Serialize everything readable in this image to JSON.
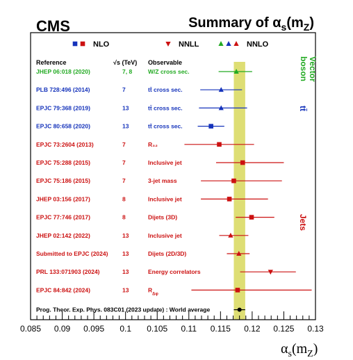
{
  "experiment": "CMS",
  "title": "Summary of α_s(m_Z)",
  "colors": {
    "vector_boson": "#22aa22",
    "ttbar": "#1533bb",
    "jets": "#cc1111",
    "world": "#000000",
    "band": "#dede74"
  },
  "legend": [
    {
      "label": "NLO",
      "markers": [
        "square"
      ],
      "colors": [
        "#1533bb",
        "#cc1111"
      ]
    },
    {
      "label": "NNLL",
      "markers": [
        "triangle-down"
      ],
      "colors": [
        "#cc1111"
      ]
    },
    {
      "label": "NNLO",
      "markers": [
        "triangle-up"
      ],
      "colors": [
        "#22aa22",
        "#1533bb",
        "#cc1111"
      ]
    }
  ],
  "headers": {
    "reference": "Reference",
    "energy": "√s (TeV)",
    "observable": "Observable"
  },
  "groups": [
    {
      "label": "Vector boson",
      "color": "#22aa22"
    },
    {
      "label": "tt̄",
      "color": "#1533bb"
    },
    {
      "label": "Jets",
      "color": "#cc1111"
    }
  ],
  "chart_data": {
    "type": "scatter",
    "xlabel": "α_s(m_Z)",
    "xlim": [
      0.085,
      0.13
    ],
    "xticks": [
      "0.085",
      "0.09",
      "0.095",
      "0.1",
      "0.105",
      "0.11",
      "0.115",
      "0.12",
      "0.125",
      "0.13"
    ],
    "band": {
      "low": 0.1171,
      "high": 0.1189
    },
    "points": [
      {
        "reference": "JHEP 06:018 (2020)",
        "sqrt_s": "7, 8",
        "observable": "W/Z cross sec.",
        "value": 0.1175,
        "err_low": 0.0028,
        "err_high": 0.0025,
        "marker": "triangle-up",
        "color": "#22aa22"
      },
      {
        "reference": "PLB 728:496 (2014)",
        "sqrt_s": "7",
        "observable": "tt̄ cross sec.",
        "value": 0.1151,
        "err_low": 0.0033,
        "err_high": 0.0033,
        "marker": "triangle-up",
        "color": "#1533bb"
      },
      {
        "reference": "EPJC 79:368 (2019)",
        "sqrt_s": "13",
        "observable": "tt̄ cross sec.",
        "value": 0.1151,
        "err_low": 0.0035,
        "err_high": 0.0041,
        "marker": "triangle-up",
        "color": "#1533bb"
      },
      {
        "reference": "EPJC 80:658 (2020)",
        "sqrt_s": "13",
        "observable": "tt̄ cross sec.",
        "value": 0.1135,
        "err_low": 0.0021,
        "err_high": 0.0021,
        "marker": "square",
        "color": "#1533bb"
      },
      {
        "reference": "EPJC 73:2604 (2013)",
        "sqrt_s": "7",
        "observable": "R₃₂",
        "value": 0.1148,
        "err_low": 0.0055,
        "err_high": 0.0055,
        "marker": "square",
        "color": "#cc1111"
      },
      {
        "reference": "EPJC 75:288 (2015)",
        "sqrt_s": "7",
        "observable": "Inclusive jet",
        "value": 0.1185,
        "err_low": 0.0042,
        "err_high": 0.0065,
        "marker": "square",
        "color": "#cc1111"
      },
      {
        "reference": "EPJC 75:186 (2015)",
        "sqrt_s": "7",
        "observable": "3-jet mass",
        "value": 0.1171,
        "err_low": 0.0052,
        "err_high": 0.0076,
        "marker": "square",
        "color": "#cc1111"
      },
      {
        "reference": "JHEP 03:156 (2017)",
        "sqrt_s": "8",
        "observable": "Inclusive jet",
        "value": 0.1164,
        "err_low": 0.0045,
        "err_high": 0.0061,
        "marker": "square",
        "color": "#cc1111"
      },
      {
        "reference": "EPJC 77:746 (2017)",
        "sqrt_s": "8",
        "observable": "Dijets (3D)",
        "value": 0.1199,
        "err_low": 0.0025,
        "err_high": 0.0036,
        "marker": "square",
        "color": "#cc1111"
      },
      {
        "reference": "JHEP 02:142 (2022)",
        "sqrt_s": "13",
        "observable": "Inclusive jet",
        "value": 0.1166,
        "err_low": 0.0018,
        "err_high": 0.0028,
        "marker": "triangle-up",
        "color": "#cc1111"
      },
      {
        "reference": "Submitted to EPJC (2024)",
        "sqrt_s": "13",
        "observable": "Dijets (2D/3D)",
        "value": 0.1179,
        "err_low": 0.0019,
        "err_high": 0.0017,
        "marker": "triangle-up",
        "color": "#cc1111"
      },
      {
        "reference": "PRL 133:071903 (2024)",
        "sqrt_s": "13",
        "observable": "Energy correlators",
        "value": 0.1229,
        "err_low": 0.0048,
        "err_high": 0.004,
        "marker": "triangle-down",
        "color": "#cc1111"
      },
      {
        "reference": "EPJC 84:842 (2024)",
        "sqrt_s": "13",
        "observable": "R_Δφ",
        "value": 0.1177,
        "err_low": 0.0073,
        "err_high": 0.0117,
        "marker": "square",
        "color": "#cc1111"
      },
      {
        "reference": "Prog. Theor. Exp. Phys. 083C01 (2023 update) : World average",
        "sqrt_s": "",
        "observable": "",
        "value": 0.118,
        "err_low": 0.0009,
        "err_high": 0.0009,
        "marker": "circle",
        "color": "#000000"
      }
    ]
  }
}
